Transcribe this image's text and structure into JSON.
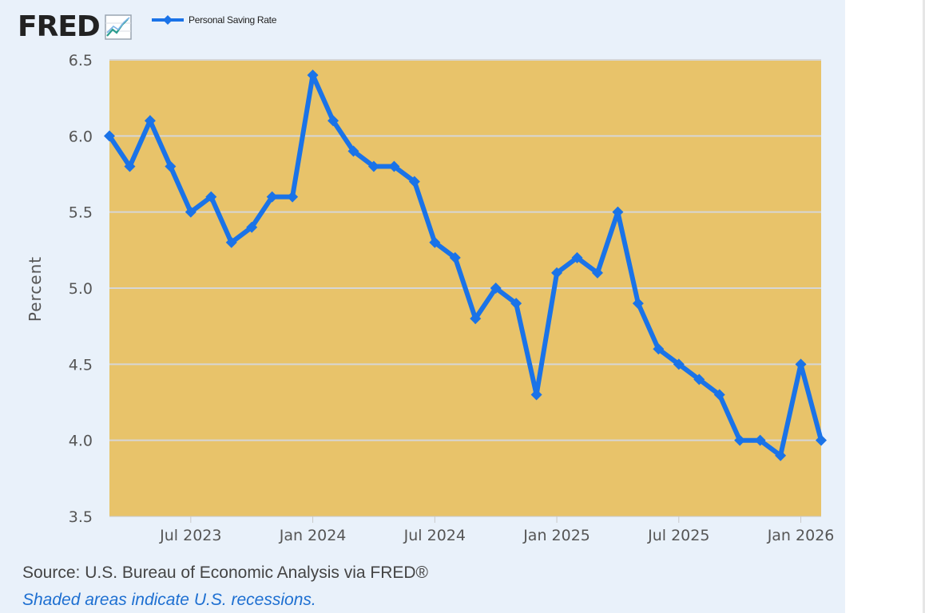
{
  "logo": {
    "text": "FRED"
  },
  "legend": {
    "label": "Personal Saving Rate",
    "color": "#1a73e8"
  },
  "colors": {
    "panel": "#e9f1fa",
    "plot_background": "#e8c36a",
    "series": "#1a73e8",
    "grid": "#d6d6d6",
    "tick_text": "#555555",
    "note_link": "#1d6fd1"
  },
  "chart_data": {
    "type": "line",
    "title": "",
    "xlabel": "",
    "ylabel": "Percent",
    "ylim": [
      3.5,
      6.5
    ],
    "yticks": [
      "3.5",
      "4.0",
      "4.5",
      "5.0",
      "5.5",
      "6.0",
      "6.5"
    ],
    "xlim_months": [
      0,
      35
    ],
    "xticks": [
      {
        "label": "Jul 2023",
        "month_index": 4
      },
      {
        "label": "Jan 2024",
        "month_index": 10
      },
      {
        "label": "Jul 2024",
        "month_index": 16
      },
      {
        "label": "Jan 2025",
        "month_index": 22
      },
      {
        "label": "Jul 2025",
        "month_index": 28
      },
      {
        "label": "Jan 2026",
        "month_index": 34
      }
    ],
    "grid": true,
    "series": [
      {
        "name": "Personal Saving Rate",
        "start": "Mar 2023",
        "frequency": "monthly",
        "values": [
          6.0,
          5.8,
          6.1,
          5.8,
          5.5,
          5.6,
          5.3,
          5.4,
          5.6,
          5.6,
          6.4,
          6.1,
          5.9,
          5.8,
          5.8,
          5.7,
          5.3,
          5.2,
          4.8,
          5.0,
          4.9,
          4.3,
          5.1,
          5.2,
          5.1,
          5.5,
          4.9,
          4.6,
          4.5,
          4.4,
          4.3,
          4.0,
          4.0,
          3.9,
          4.5,
          4.0
        ]
      }
    ]
  },
  "footer": {
    "source": "Source: U.S. Bureau of Economic Analysis via FRED®",
    "recession_note": "Shaded areas indicate U.S. recessions."
  }
}
